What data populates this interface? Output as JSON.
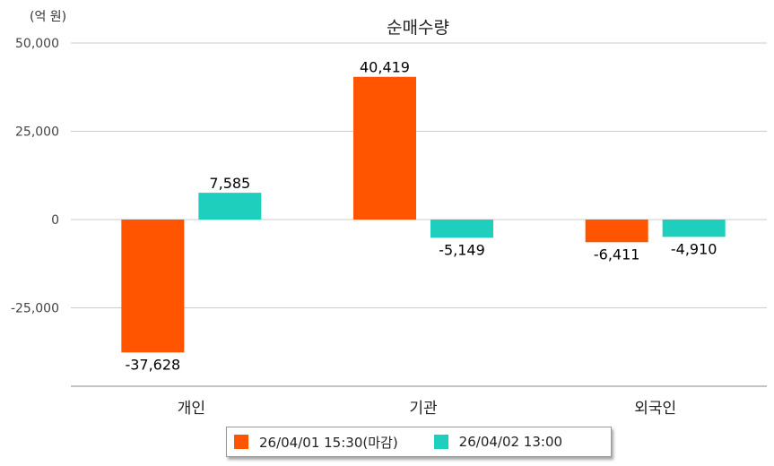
{
  "chart_data": {
    "type": "bar",
    "title": "순매수량",
    "unit_label": "(억 원)",
    "categories": [
      "개인",
      "기관",
      "외국인"
    ],
    "series": [
      {
        "name": "26/04/01 15:30(마감)",
        "color": "#ff5500",
        "values": [
          -37628,
          40419,
          -6411
        ]
      },
      {
        "name": "26/04/02 13:00",
        "color": "#1ecfbe",
        "values": [
          7585,
          -5149,
          -4910
        ]
      }
    ],
    "value_labels": [
      [
        "-37,628",
        "40,419",
        "-6,411"
      ],
      [
        "7,585",
        "-5,149",
        "-4,910"
      ]
    ],
    "yticks": [
      50000,
      25000,
      0,
      -25000
    ],
    "ytick_labels": [
      "50,000",
      "25,000",
      "0",
      "-25,000"
    ],
    "ylim": [
      -47000,
      50000
    ],
    "grid": true,
    "legend_position": "bottom-center"
  }
}
